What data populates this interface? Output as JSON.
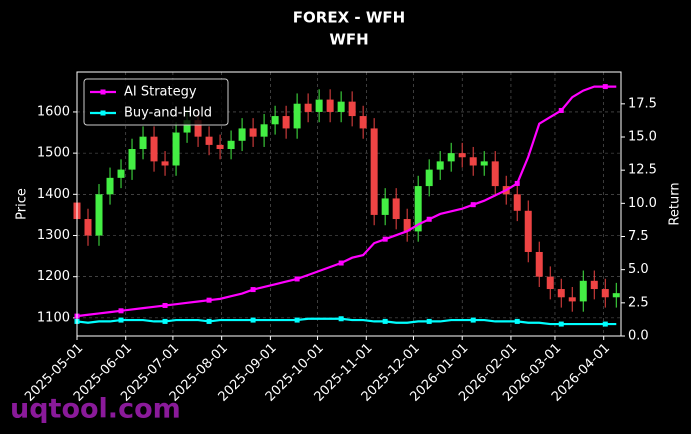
{
  "chart_data": {
    "type": "candlestick",
    "title": "FOREX - WFH",
    "subtitle": "WFH",
    "y_label": "Price",
    "y2_label": "Return",
    "watermark": "uqtool.com",
    "x": [
      "2025-05-01",
      "2025-05-08",
      "2025-05-15",
      "2025-05-22",
      "2025-05-29",
      "2025-06-05",
      "2025-06-12",
      "2025-06-19",
      "2025-06-26",
      "2025-07-03",
      "2025-07-10",
      "2025-07-17",
      "2025-07-24",
      "2025-07-31",
      "2025-08-07",
      "2025-08-14",
      "2025-08-21",
      "2025-08-28",
      "2025-09-04",
      "2025-09-11",
      "2025-09-18",
      "2025-09-25",
      "2025-10-02",
      "2025-10-09",
      "2025-10-16",
      "2025-10-23",
      "2025-10-30",
      "2025-11-06",
      "2025-11-13",
      "2025-11-20",
      "2025-11-27",
      "2025-12-04",
      "2025-12-11",
      "2025-12-18",
      "2025-12-25",
      "2026-01-01",
      "2026-01-08",
      "2026-01-15",
      "2026-01-22",
      "2026-01-29",
      "2026-02-05",
      "2026-02-12",
      "2026-02-19",
      "2026-02-26",
      "2026-03-05",
      "2026-03-12",
      "2026-03-19",
      "2026-03-26",
      "2026-04-02",
      "2026-04-09"
    ],
    "open": [
      1380,
      1340,
      1300,
      1400,
      1440,
      1460,
      1510,
      1540,
      1480,
      1470,
      1550,
      1580,
      1540,
      1520,
      1510,
      1530,
      1560,
      1540,
      1570,
      1590,
      1560,
      1620,
      1600,
      1630,
      1600,
      1625,
      1590,
      1560,
      1350,
      1390,
      1340,
      1310,
      1420,
      1460,
      1480,
      1500,
      1490,
      1470,
      1480,
      1420,
      1400,
      1360,
      1260,
      1200,
      1170,
      1150,
      1140,
      1190,
      1170,
      1150
    ],
    "high": [
      1405,
      1365,
      1425,
      1465,
      1485,
      1535,
      1565,
      1565,
      1505,
      1575,
      1605,
      1605,
      1565,
      1545,
      1555,
      1585,
      1585,
      1595,
      1615,
      1615,
      1645,
      1645,
      1655,
      1655,
      1650,
      1650,
      1615,
      1585,
      1415,
      1415,
      1365,
      1445,
      1485,
      1505,
      1525,
      1525,
      1515,
      1505,
      1505,
      1445,
      1425,
      1385,
      1285,
      1225,
      1195,
      1175,
      1215,
      1215,
      1195,
      1185
    ],
    "low": [
      1315,
      1275,
      1275,
      1375,
      1415,
      1435,
      1485,
      1455,
      1445,
      1445,
      1525,
      1515,
      1495,
      1485,
      1485,
      1505,
      1515,
      1515,
      1545,
      1535,
      1535,
      1575,
      1575,
      1575,
      1575,
      1565,
      1535,
      1325,
      1325,
      1315,
      1285,
      1285,
      1395,
      1435,
      1455,
      1465,
      1445,
      1445,
      1395,
      1375,
      1335,
      1235,
      1175,
      1145,
      1125,
      1115,
      1115,
      1145,
      1125,
      1125
    ],
    "close": [
      1340,
      1300,
      1400,
      1440,
      1460,
      1510,
      1540,
      1480,
      1470,
      1550,
      1580,
      1540,
      1520,
      1510,
      1530,
      1560,
      1540,
      1570,
      1590,
      1560,
      1620,
      1600,
      1630,
      1600,
      1625,
      1590,
      1560,
      1350,
      1390,
      1340,
      1310,
      1420,
      1460,
      1480,
      1500,
      1490,
      1470,
      1480,
      1420,
      1400,
      1360,
      1260,
      1200,
      1170,
      1150,
      1140,
      1190,
      1170,
      1150,
      1160
    ],
    "up_color": "#44ee44",
    "down_color": "#ee4444",
    "series": [
      {
        "name": "AI Strategy",
        "color": "#ff00ff",
        "axis": "y2",
        "values": [
          1.5,
          1.6,
          1.7,
          1.8,
          1.9,
          2.0,
          2.1,
          2.2,
          2.3,
          2.4,
          2.5,
          2.6,
          2.7,
          2.8,
          3.0,
          3.2,
          3.5,
          3.7,
          3.9,
          4.1,
          4.3,
          4.6,
          4.9,
          5.2,
          5.5,
          5.9,
          6.1,
          7.0,
          7.3,
          7.6,
          7.9,
          8.4,
          8.8,
          9.2,
          9.4,
          9.6,
          9.9,
          10.2,
          10.6,
          11.0,
          11.5,
          13.5,
          16.0,
          16.5,
          17.0,
          18.0,
          18.5,
          18.8,
          18.8,
          18.8
        ]
      },
      {
        "name": "Buy-and-Hold",
        "color": "#00ffff",
        "axis": "y2",
        "values": [
          1.1,
          1.0,
          1.1,
          1.1,
          1.2,
          1.2,
          1.2,
          1.1,
          1.1,
          1.2,
          1.2,
          1.2,
          1.1,
          1.2,
          1.2,
          1.2,
          1.2,
          1.2,
          1.2,
          1.2,
          1.2,
          1.3,
          1.3,
          1.3,
          1.3,
          1.2,
          1.2,
          1.1,
          1.1,
          1.0,
          1.0,
          1.1,
          1.1,
          1.1,
          1.2,
          1.2,
          1.2,
          1.2,
          1.1,
          1.1,
          1.1,
          1.0,
          1.0,
          0.9,
          0.9,
          0.9,
          0.9,
          0.9,
          0.9,
          0.9
        ]
      }
    ],
    "xlim": [
      "2025-05-01",
      "2026-04-12"
    ],
    "xticks": [
      "2025-05-01",
      "2025-06-01",
      "2025-07-01",
      "2025-08-01",
      "2025-09-01",
      "2025-10-01",
      "2025-11-01",
      "2025-12-01",
      "2026-01-01",
      "2026-02-01",
      "2026-03-01",
      "2026-04-01"
    ],
    "ylim": [
      1056,
      1697
    ],
    "yticks": [
      1100,
      1200,
      1300,
      1400,
      1500,
      1600
    ],
    "y2lim": [
      0,
      19.9
    ],
    "y2ticks": [
      {
        "value": 0,
        "label": "0.0"
      },
      2.5,
      {
        "value": 5,
        "label": "5.0"
      },
      7.5,
      {
        "value": 10,
        "label": "10.0"
      },
      12.5,
      {
        "value": 15,
        "label": "15.0"
      },
      17.5
    ],
    "grid": true,
    "legend": "upper left"
  }
}
